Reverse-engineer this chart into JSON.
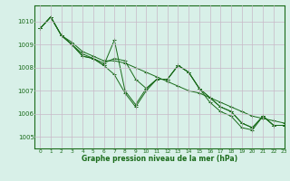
{
  "background_color": "#d8f0e8",
  "grid_color": "#c8b8c8",
  "line_color": "#1a6b1a",
  "title": "Graphe pression niveau de la mer (hPa)",
  "xlim": [
    -0.5,
    23
  ],
  "ylim": [
    1004.5,
    1010.7
  ],
  "yticks": [
    1005,
    1006,
    1007,
    1008,
    1009,
    1010
  ],
  "xticks": [
    0,
    1,
    2,
    3,
    4,
    5,
    6,
    7,
    8,
    9,
    10,
    11,
    12,
    13,
    14,
    15,
    16,
    17,
    18,
    19,
    20,
    21,
    22,
    23
  ],
  "s1": [
    1009.7,
    1010.2,
    1009.4,
    1009.1,
    1008.7,
    1008.5,
    1008.3,
    1008.3,
    1008.2,
    1008.0,
    1007.8,
    1007.6,
    1007.4,
    1007.2,
    1007.0,
    1006.9,
    1006.7,
    1006.5,
    1006.3,
    1006.1,
    1005.9,
    1005.8,
    1005.7,
    1005.6
  ],
  "s2": [
    1009.7,
    1010.2,
    1009.4,
    1009.0,
    1008.6,
    1008.4,
    1008.2,
    1008.4,
    1008.3,
    1007.5,
    1007.1,
    1007.5,
    1007.5,
    1008.1,
    1007.8,
    1007.1,
    1006.7,
    1006.3,
    1006.1,
    1005.6,
    1005.4,
    1005.9,
    1005.5,
    1005.5
  ],
  "s3": [
    1009.7,
    1010.2,
    1009.4,
    1009.0,
    1008.5,
    1008.4,
    1008.1,
    1009.2,
    1007.0,
    1006.4,
    1007.1,
    1007.5,
    1007.5,
    1008.1,
    1007.8,
    1007.1,
    1006.7,
    1006.3,
    1006.1,
    1005.6,
    1005.4,
    1005.9,
    1005.5,
    1005.5
  ],
  "s4": [
    1009.7,
    1010.2,
    1009.4,
    1009.0,
    1008.5,
    1008.4,
    1008.1,
    1007.7,
    1006.9,
    1006.3,
    1007.0,
    1007.5,
    1007.5,
    1008.1,
    1007.8,
    1007.1,
    1006.5,
    1006.1,
    1005.9,
    1005.4,
    1005.3,
    1005.9,
    1005.5,
    1005.5
  ]
}
